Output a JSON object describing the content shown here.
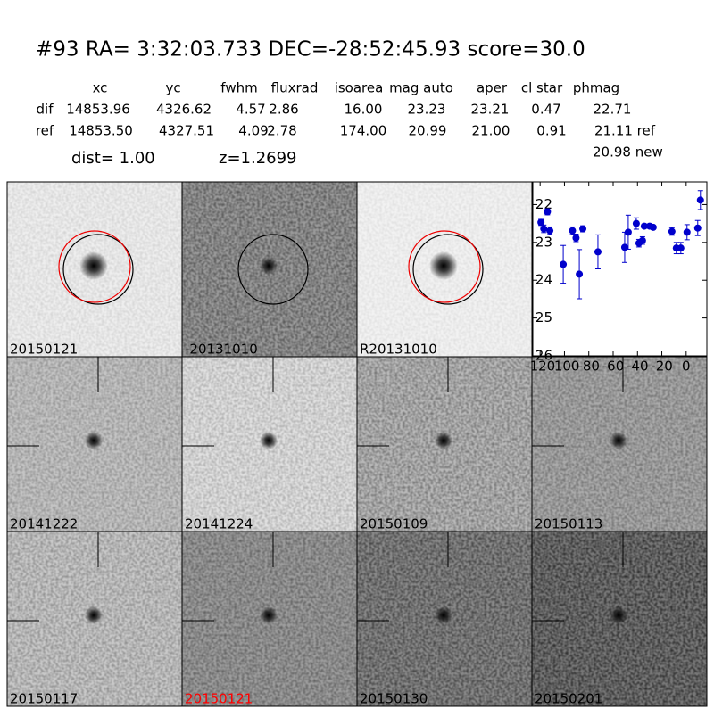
{
  "header": {
    "title": "#93   RA= 3:32:03.733 DEC=-28:52:45.93       score=30.0",
    "dist": "dist=  1.00",
    "z": "z=1.2699",
    "new": "20.98 new"
  },
  "table": {
    "columns": [
      "xc",
      "yc",
      "fwhm",
      "fluxrad",
      "isoarea",
      "mag auto",
      "aper",
      "cl star",
      "phmag"
    ],
    "rows": [
      [
        "dif",
        "14853.96",
        "4326.62",
        "4.57",
        "2.86",
        "16.00",
        "23.23",
        "23.21",
        "0.47",
        "22.71"
      ],
      [
        "ref",
        "14853.50",
        "4327.51",
        "4.09",
        "2.78",
        "174.00",
        "20.99",
        "21.00",
        "0.91",
        "21.11 ref"
      ]
    ]
  },
  "stamps": [
    {
      "label": "20150121"
    },
    {
      "label": "-20131010"
    },
    {
      "label": "R20131010"
    },
    {
      "label": "20141222"
    },
    {
      "label": "20141224"
    },
    {
      "label": "20150109"
    },
    {
      "label": "20150113"
    },
    {
      "label": "20150117"
    },
    {
      "label": "20150121",
      "color": "#ff0000"
    },
    {
      "label": "20150130"
    },
    {
      "label": "20150201"
    }
  ],
  "chart_data": {
    "type": "errorbar",
    "color": "#0000cc",
    "x": [
      -119.3,
      -117,
      -114,
      -112,
      -101,
      -93.4,
      -90.5,
      -87.8,
      -84.9,
      -72.5,
      -50.5,
      -47.6,
      -41,
      -38.8,
      -35.9,
      -34.4,
      -30,
      -27.1,
      -11.7,
      -8.1,
      -4.4,
      0.7,
      9.5,
      11.7
    ],
    "values": [
      22.47,
      22.64,
      22.19,
      22.69,
      23.58,
      22.69,
      22.88,
      23.84,
      22.64,
      23.25,
      23.13,
      22.73,
      22.5,
      23.02,
      22.95,
      22.57,
      22.57,
      22.6,
      22.71,
      23.15,
      23.15,
      22.73,
      22.62,
      21.88
    ],
    "errors": [
      0.08,
      0.1,
      0.08,
      0.1,
      0.5,
      0.1,
      0.1,
      0.65,
      0.08,
      0.45,
      0.4,
      0.45,
      0.15,
      0.1,
      0.1,
      0.05,
      0.05,
      0.05,
      0.1,
      0.15,
      0.15,
      0.2,
      0.2,
      0.25
    ],
    "xlim": [
      -126,
      17
    ],
    "ylim": [
      21.4,
      26
    ],
    "y_inverted": true,
    "xticks": [
      -120,
      -100,
      -80,
      -60,
      -40,
      -20,
      0
    ],
    "yticks": [
      22,
      23,
      24,
      25,
      26
    ]
  }
}
